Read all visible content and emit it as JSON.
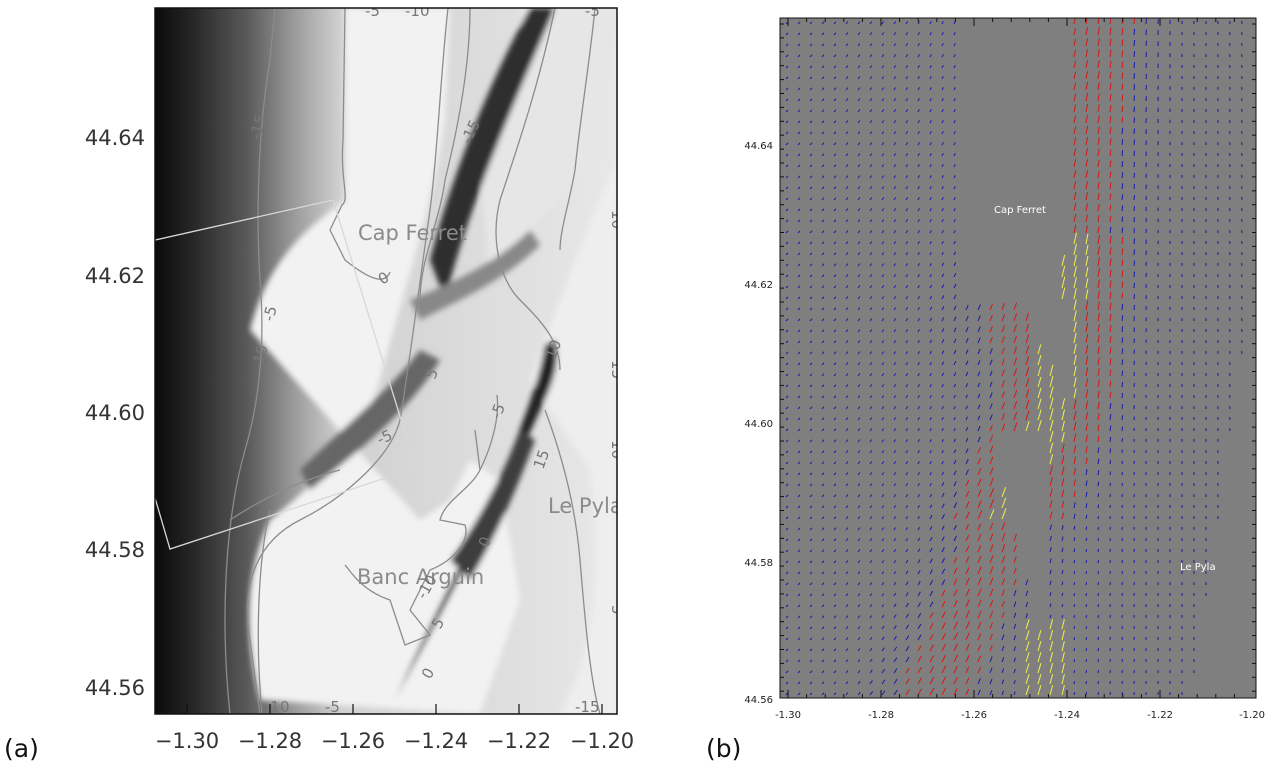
{
  "panel_a": {
    "label": "(a)",
    "x_ticks": [
      "−1.30",
      "−1.28",
      "−1.26",
      "−1.24",
      "−1.22",
      "−1.20"
    ],
    "y_ticks": [
      "44.64",
      "44.62",
      "44.60",
      "44.58",
      "44.56"
    ],
    "places": [
      "Cap Ferret",
      "Le Pyla",
      "Banc Arguin"
    ],
    "contour_labels": [
      "-5",
      "-10",
      "-15",
      "0",
      "-5",
      "10",
      "-5",
      "5",
      "-15",
      "-5",
      "10",
      "15",
      "10",
      "10",
      "5",
      "0",
      "5",
      "-5",
      "-10",
      "-15",
      "-10",
      "-5",
      "0",
      "15"
    ]
  },
  "panel_b": {
    "label": "(b)",
    "x_ticks": [
      "-1.30",
      "-1.28",
      "-1.26",
      "-1.24",
      "-1.22",
      "-1.20"
    ],
    "y_ticks": [
      "44.64",
      "44.62",
      "44.60",
      "44.58",
      "44.56"
    ],
    "places": [
      "Cap Ferret",
      "Le Pyla"
    ]
  },
  "colors": {
    "land_gray": "#7f7f7f",
    "arrow_slow": "#1a1aa8",
    "arrow_mid": "#d11a1a",
    "arrow_fast": "#f0f050"
  }
}
